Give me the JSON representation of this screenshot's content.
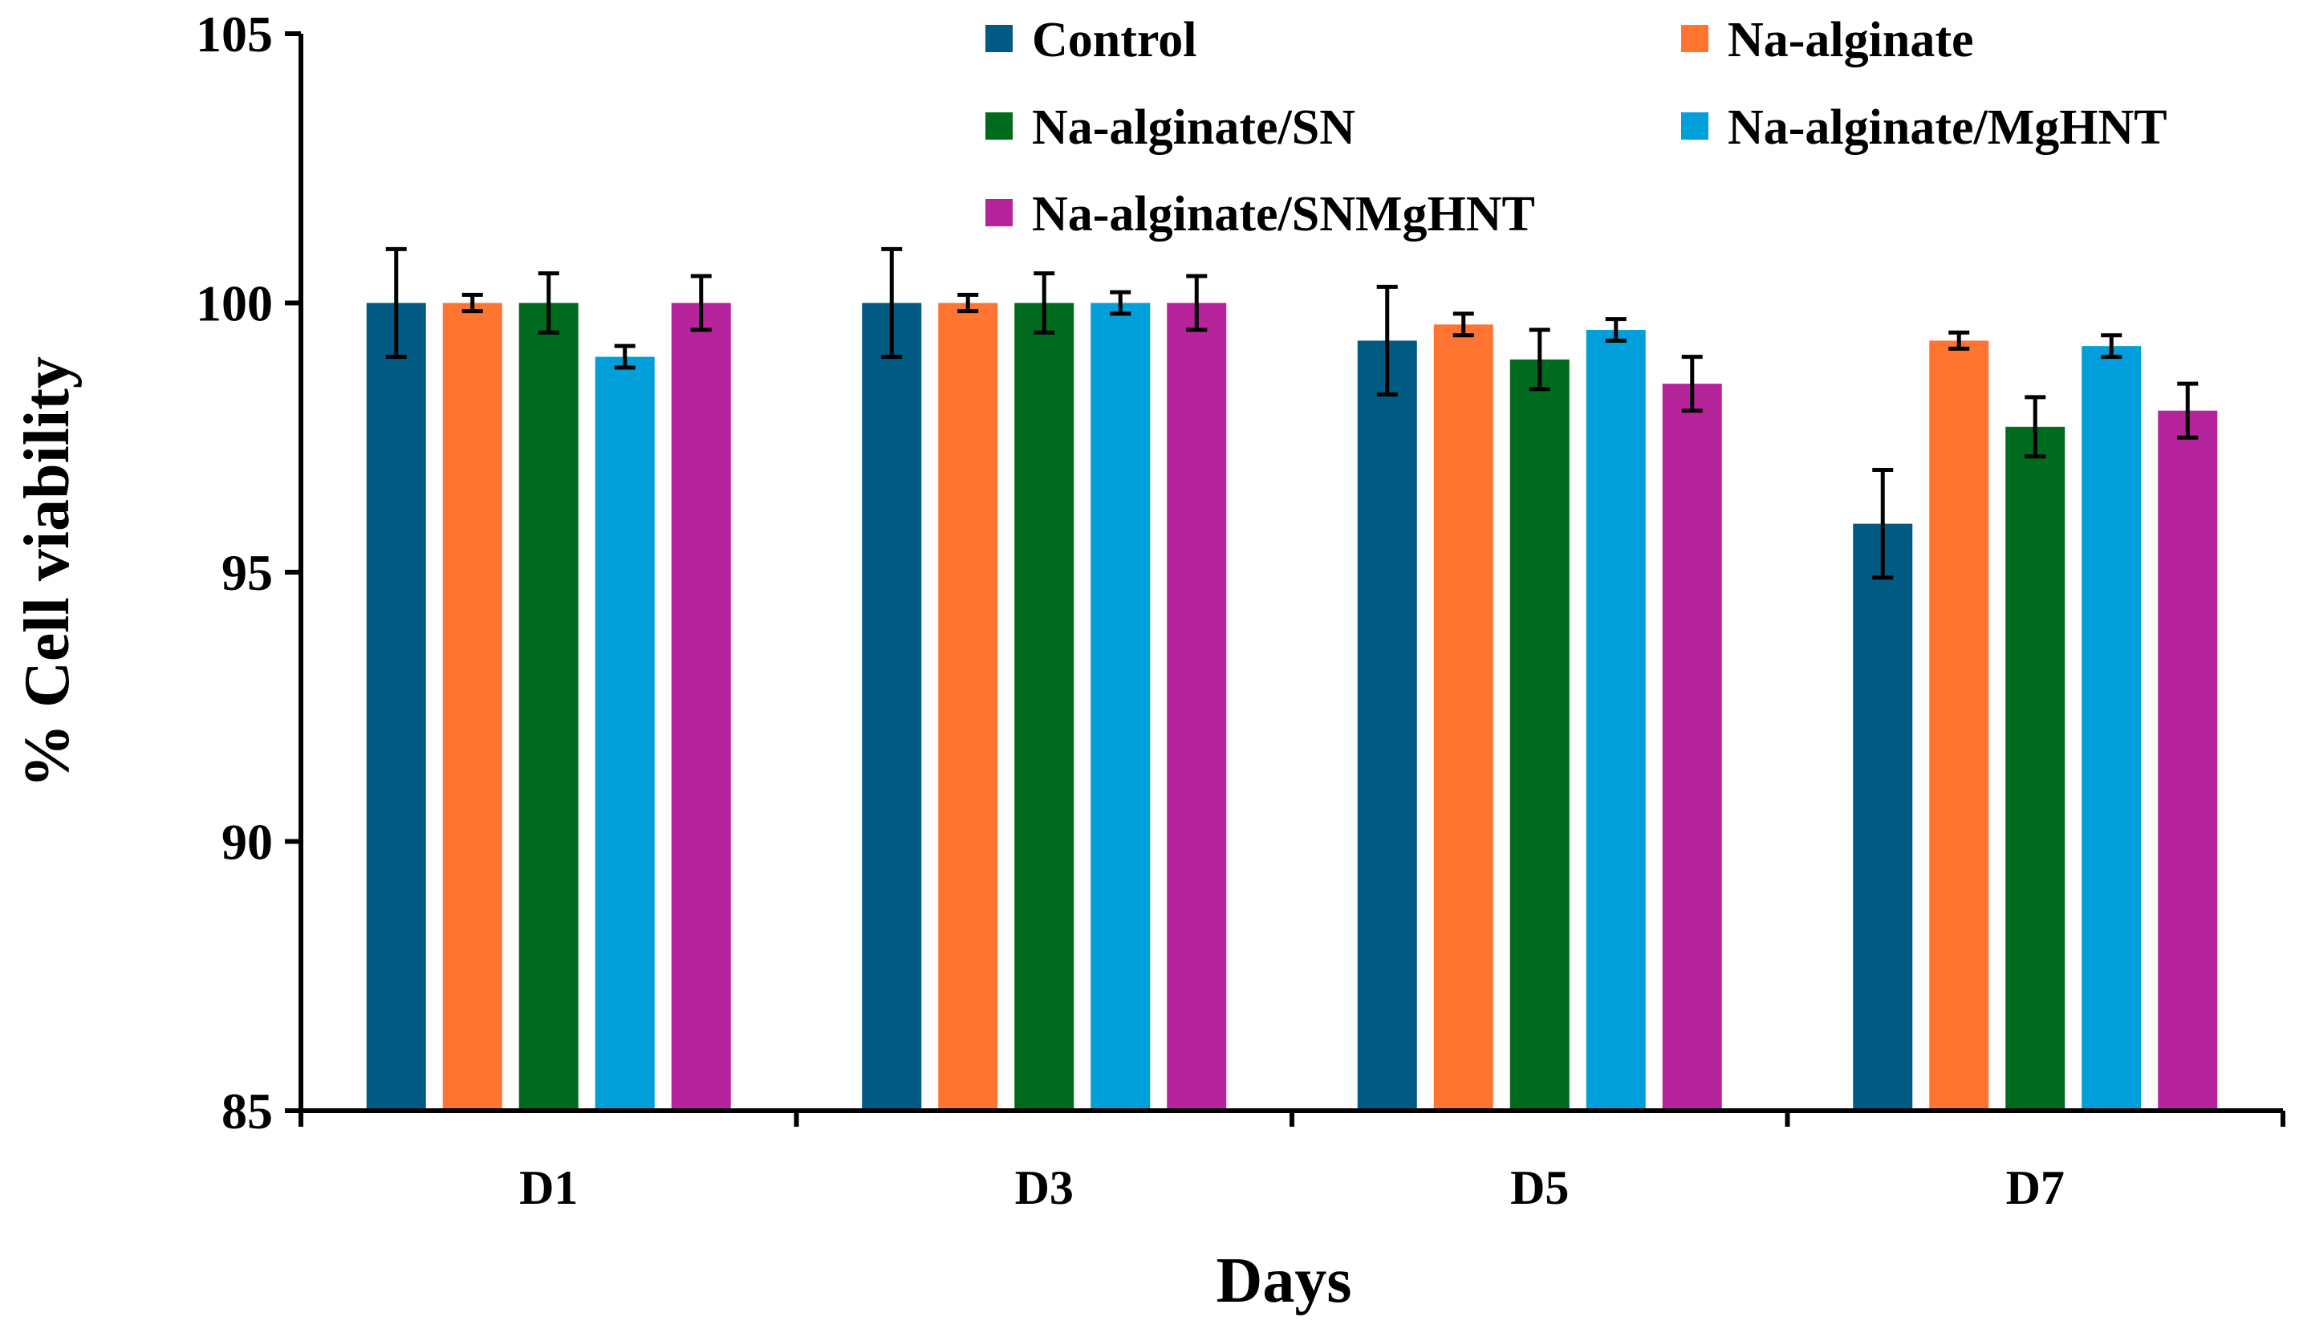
{
  "chart_data": {
    "type": "bar",
    "title": "",
    "xlabel": "Days",
    "ylabel": "% Cell viability",
    "ylim": [
      85,
      105
    ],
    "yticks": [
      "85",
      "90",
      "95",
      "100",
      "105"
    ],
    "categories": [
      "D1",
      "D3",
      "D5",
      "D7"
    ],
    "series": [
      {
        "name": "Control",
        "color": "#005a82",
        "values": [
          100.0,
          100.0,
          99.3,
          95.9
        ],
        "errors": [
          1.0,
          1.0,
          1.0,
          1.0
        ]
      },
      {
        "name": "Na-alginate",
        "color": "#ff7431",
        "values": [
          100.0,
          100.0,
          99.6,
          99.3
        ],
        "errors": [
          0.15,
          0.15,
          0.2,
          0.15
        ]
      },
      {
        "name": "Na-alginate/SN",
        "color": "#006b1e",
        "values": [
          100.0,
          100.0,
          98.95,
          97.7
        ],
        "errors": [
          0.55,
          0.55,
          0.55,
          0.55
        ]
      },
      {
        "name": "Na-alginate/MgHNT",
        "color": "#009fd9",
        "values": [
          99.0,
          100.0,
          99.5,
          99.2
        ],
        "errors": [
          0.2,
          0.2,
          0.2,
          0.2
        ]
      },
      {
        "name": "Na-alginate/SNMgHNT",
        "color": "#b5249b",
        "values": [
          100.0,
          100.0,
          98.5,
          98.0
        ],
        "errors": [
          0.5,
          0.5,
          0.5,
          0.5
        ]
      }
    ],
    "legend_position": "top-right",
    "grid": false
  }
}
